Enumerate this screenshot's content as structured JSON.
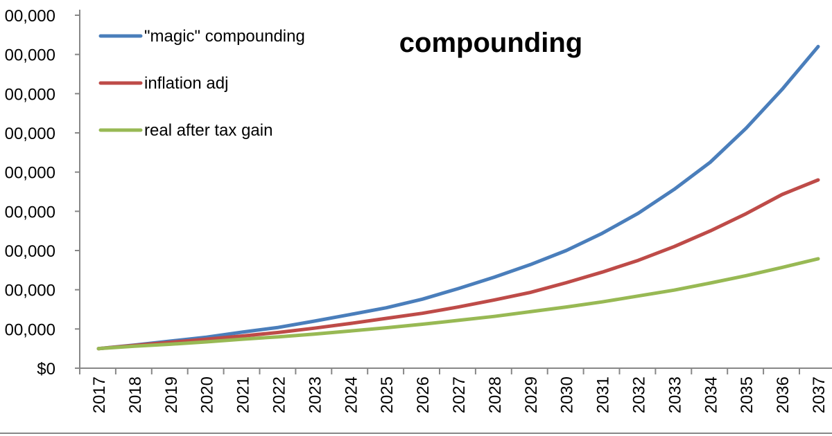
{
  "chart_data": {
    "type": "line",
    "title": "compounding",
    "xlabel": "",
    "ylabel": "",
    "x": [
      2017,
      2018,
      2019,
      2020,
      2021,
      2022,
      2023,
      2024,
      2025,
      2026,
      2027,
      2028,
      2029,
      2030,
      2031,
      2032,
      2033,
      2034,
      2035,
      2036,
      2037
    ],
    "y_tick_labels": [
      "$0",
      "00,000",
      "00,000",
      "00,000",
      "00,000",
      "00,000",
      "00,000",
      "00,000",
      "00,000",
      "00,000"
    ],
    "ylim": [
      0,
      9
    ],
    "grid": false,
    "legend_position": "top-left",
    "series": [
      {
        "name": "\"magic\" compounding",
        "color": "#4a7ebb",
        "values": [
          0.5,
          0.59,
          0.69,
          0.79,
          0.92,
          1.04,
          1.2,
          1.37,
          1.54,
          1.76,
          2.03,
          2.32,
          2.64,
          3.0,
          3.44,
          3.95,
          4.56,
          5.25,
          6.12,
          7.11,
          8.2
        ]
      },
      {
        "name": "inflation adj",
        "color": "#be4b48",
        "values": [
          0.5,
          0.58,
          0.66,
          0.74,
          0.82,
          0.91,
          1.02,
          1.14,
          1.27,
          1.4,
          1.56,
          1.74,
          1.93,
          2.18,
          2.45,
          2.75,
          3.1,
          3.5,
          3.94,
          4.43,
          4.8
        ]
      },
      {
        "name": "real after tax gain",
        "color": "#98b954",
        "values": [
          0.5,
          0.56,
          0.61,
          0.67,
          0.74,
          0.8,
          0.87,
          0.95,
          1.03,
          1.12,
          1.22,
          1.32,
          1.44,
          1.56,
          1.69,
          1.84,
          1.99,
          2.17,
          2.36,
          2.57,
          2.79
        ]
      }
    ]
  }
}
